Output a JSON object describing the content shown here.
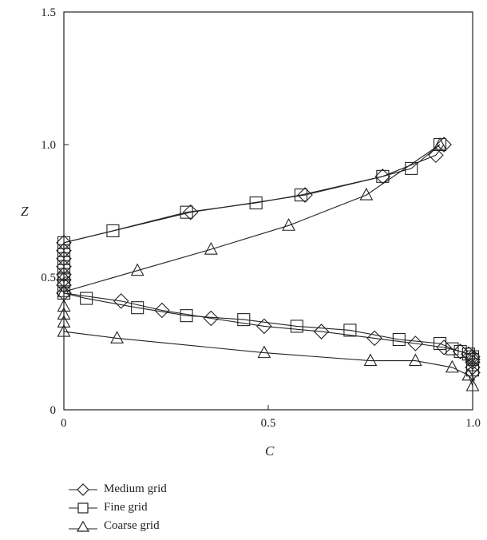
{
  "chart_data": {
    "type": "line",
    "xlabel": "C",
    "ylabel": "Z",
    "xlim": [
      0,
      1.0
    ],
    "ylim": [
      0,
      1.5
    ],
    "xticks": [
      {
        "v": 0,
        "label": "0"
      },
      {
        "v": 0.5,
        "label": "0.5"
      },
      {
        "v": 1.0,
        "label": "1.0"
      }
    ],
    "yticks": [
      {
        "v": 0,
        "label": "0"
      },
      {
        "v": 0.5,
        "label": "0.5"
      },
      {
        "v": 1.0,
        "label": "1.0"
      },
      {
        "v": 1.5,
        "label": "1.5"
      }
    ],
    "grid": false,
    "legend_position": "bottom-left, below plot",
    "series": [
      {
        "name": "Medium grid",
        "marker": "diamond",
        "color": "#222222",
        "x": [
          0.93,
          0.91,
          0.78,
          0.59,
          0.31,
          0,
          0,
          0,
          0,
          0,
          0,
          0,
          0,
          0.14,
          0.24,
          0.36,
          0.49,
          0.63,
          0.76,
          0.86,
          0.93,
          0.97,
          0.99,
          1.0,
          1.0,
          1.0,
          1.0,
          1.0
        ],
        "y": [
          1.0,
          0.96,
          0.88,
          0.81,
          0.745,
          0.63,
          0.6,
          0.57,
          0.54,
          0.51,
          0.49,
          0.47,
          0.44,
          0.41,
          0.375,
          0.345,
          0.315,
          0.295,
          0.27,
          0.25,
          0.235,
          0.22,
          0.21,
          0.2,
          0.19,
          0.18,
          0.16,
          0.14
        ]
      },
      {
        "name": "Fine grid",
        "marker": "square",
        "color": "#222222",
        "x": [
          0.92,
          0.85,
          0.78,
          0.58,
          0.47,
          0.3,
          0.12,
          0,
          0,
          0,
          0,
          0,
          0,
          0,
          0,
          0.055,
          0.18,
          0.3,
          0.44,
          0.57,
          0.7,
          0.82,
          0.92,
          0.95,
          0.97,
          0.99,
          1.0,
          1.0,
          1.0,
          1.0
        ],
        "y": [
          1.0,
          0.91,
          0.88,
          0.81,
          0.78,
          0.745,
          0.675,
          0.63,
          0.6,
          0.57,
          0.54,
          0.51,
          0.49,
          0.47,
          0.44,
          0.42,
          0.385,
          0.355,
          0.34,
          0.315,
          0.3,
          0.265,
          0.25,
          0.23,
          0.22,
          0.21,
          0.2,
          0.19,
          0.17,
          0.15
        ]
      },
      {
        "name": "Coarse grid",
        "marker": "triangle",
        "color": "#222222",
        "x": [
          0.92,
          0.74,
          0.55,
          0.36,
          0.18,
          0,
          0,
          0,
          0,
          0,
          0.13,
          0.49,
          0.75,
          0.86,
          0.95,
          0.99,
          1.0
        ],
        "y": [
          1.0,
          0.81,
          0.695,
          0.605,
          0.525,
          0.445,
          0.39,
          0.36,
          0.33,
          0.295,
          0.27,
          0.215,
          0.185,
          0.185,
          0.16,
          0.13,
          0.09
        ]
      }
    ]
  }
}
